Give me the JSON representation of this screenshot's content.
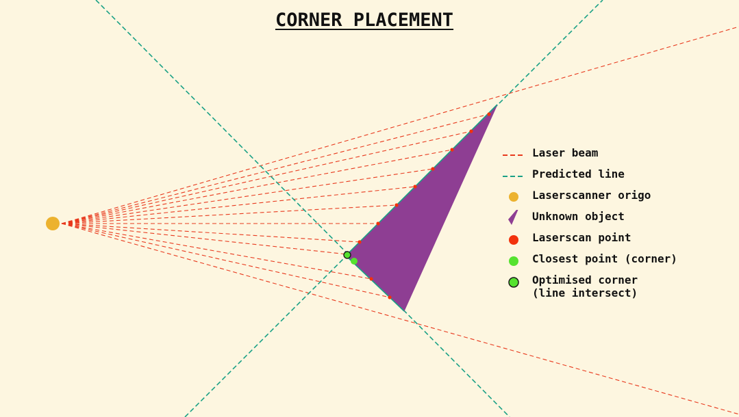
{
  "title": "CORNER PLACEMENT",
  "colors": {
    "background": "#fdf6e0",
    "laser_beam": "#e8391d",
    "predicted_line": "#19a085",
    "origin": "#ecb22e",
    "object": "#8e3e93",
    "scan_point": "#f2320c",
    "closest_point": "#55e22f",
    "optimised_corner": "#55e22f"
  },
  "legend": [
    {
      "key": "laser_beam",
      "label": "Laser beam",
      "icon": "dashed-red-line-icon"
    },
    {
      "key": "predicted_line",
      "label": "Predicted line",
      "icon": "dashed-green-line-icon"
    },
    {
      "key": "origin",
      "label": "Laserscanner origo",
      "icon": "orange-dot-icon"
    },
    {
      "key": "object",
      "label": "Unknown object",
      "icon": "purple-wedge-icon"
    },
    {
      "key": "scan_point",
      "label": "Laserscan point",
      "icon": "red-dot-icon"
    },
    {
      "key": "closest_point",
      "label": "Closest point (corner)",
      "icon": "green-dot-icon"
    },
    {
      "key": "optimised_corner",
      "label": "Optimised corner\n(line intersect)",
      "icon": "outlined-green-dot-icon"
    }
  ]
}
